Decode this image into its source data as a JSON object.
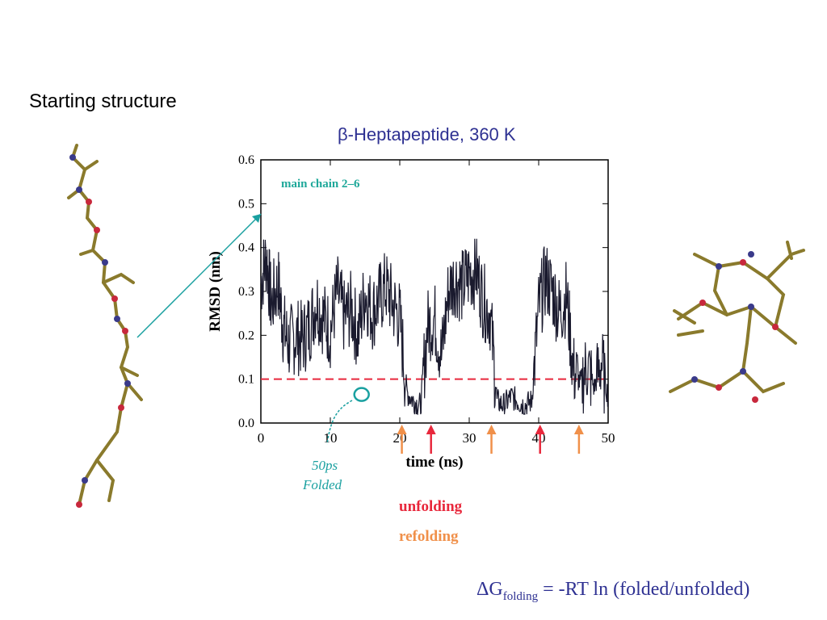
{
  "slide": {
    "starting_label": "Starting structure",
    "title": "β-Heptapeptide, 360 K",
    "legend_unfolding": "unfolding",
    "legend_refolding": "refolding",
    "equation": {
      "prefix": "ΔG",
      "subscript": "folding",
      "rest": " = -RT ln (folded/unfolded)"
    },
    "handwritten_note": [
      "50ps",
      "Folded"
    ]
  },
  "colors": {
    "title": "#2e3192",
    "trace": "#1a1a2e",
    "threshold": "#e8283c",
    "annotation": "#1fa89a",
    "unfolding": "#e8283c",
    "refolding": "#f0904a",
    "connector": "#1aa0a0"
  },
  "chart_data": {
    "type": "line",
    "annotation": "main chain 2–6",
    "xlabel": "time (ns)",
    "ylabel": "RMSD (nm)",
    "xlim": [
      0,
      50
    ],
    "ylim": [
      0,
      0.6
    ],
    "xticks": [
      0,
      10,
      20,
      30,
      40,
      50
    ],
    "yticks": [
      "0.0",
      "0.1",
      "0.2",
      "0.3",
      "0.4",
      "0.5",
      "0.6"
    ],
    "threshold": 0.1,
    "segments": [
      [
        0,
        0.32
      ],
      [
        0.8,
        0.38
      ],
      [
        1.5,
        0.27
      ],
      [
        2.5,
        0.32
      ],
      [
        3.2,
        0.22
      ],
      [
        4,
        0.18
      ],
      [
        5,
        0.2
      ],
      [
        6,
        0.19
      ],
      [
        7,
        0.22
      ],
      [
        8,
        0.28
      ],
      [
        9,
        0.24
      ],
      [
        10,
        0.21
      ],
      [
        11,
        0.3
      ],
      [
        12,
        0.24
      ],
      [
        13,
        0.26
      ],
      [
        14,
        0.2
      ],
      [
        15,
        0.3
      ],
      [
        16,
        0.25
      ],
      [
        17,
        0.28
      ],
      [
        18,
        0.31
      ],
      [
        19,
        0.27
      ],
      [
        20,
        0.24
      ],
      [
        21,
        0.07
      ],
      [
        22,
        0.05
      ],
      [
        23,
        0.04
      ],
      [
        24,
        0.22
      ],
      [
        25,
        0.24
      ],
      [
        26,
        0.15
      ],
      [
        27,
        0.3
      ],
      [
        28,
        0.33
      ],
      [
        29,
        0.31
      ],
      [
        30,
        0.34
      ],
      [
        31,
        0.35
      ],
      [
        32,
        0.28
      ],
      [
        33,
        0.25
      ],
      [
        34,
        0.05
      ],
      [
        35,
        0.04
      ],
      [
        36,
        0.06
      ],
      [
        37,
        0.05
      ],
      [
        38,
        0.04
      ],
      [
        39,
        0.05
      ],
      [
        40,
        0.26
      ],
      [
        41,
        0.33
      ],
      [
        42,
        0.3
      ],
      [
        43,
        0.25
      ],
      [
        44,
        0.29
      ],
      [
        45,
        0.12
      ],
      [
        46,
        0.09
      ],
      [
        47,
        0.13
      ],
      [
        48,
        0.08
      ],
      [
        49,
        0.14
      ],
      [
        50,
        0.06
      ]
    ],
    "folded_circle": {
      "x": 14.5,
      "y": 0.065
    },
    "unfolding_times": [
      24.5,
      40.2
    ],
    "refolding_times": [
      20.3,
      33.2,
      45.8
    ]
  }
}
